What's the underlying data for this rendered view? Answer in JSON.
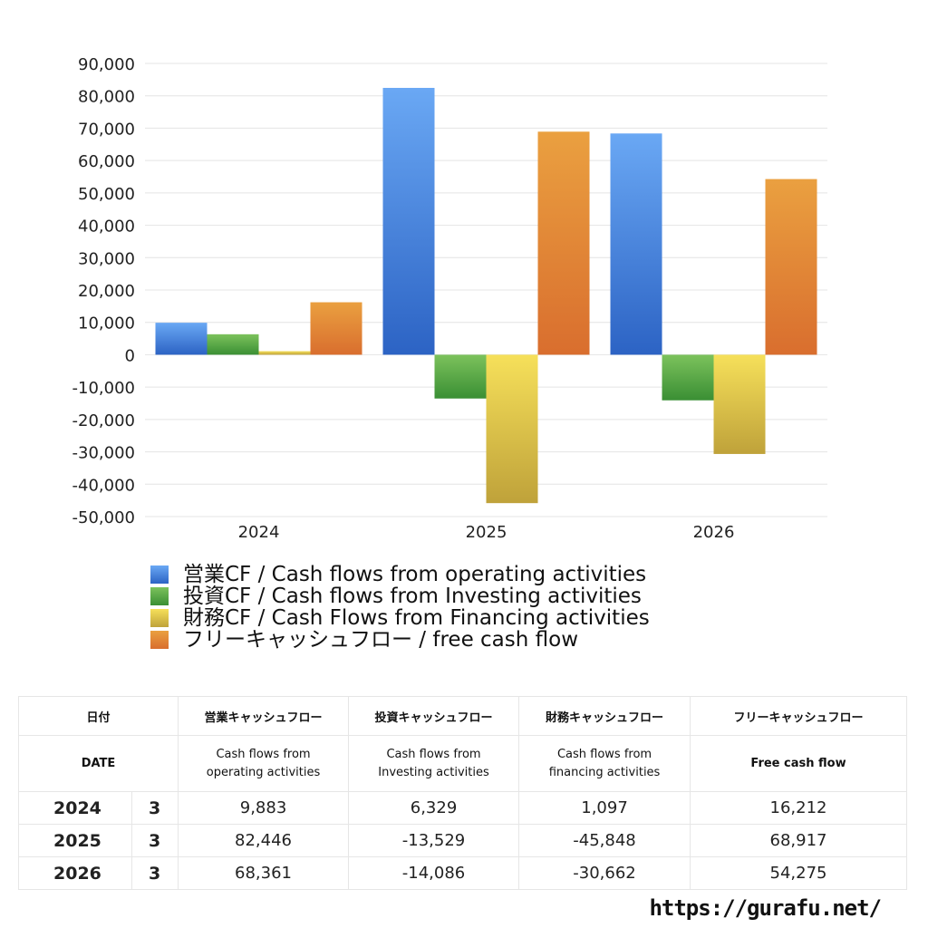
{
  "chart_data": {
    "type": "bar",
    "categories": [
      "2024",
      "2025",
      "2026"
    ],
    "ylim": [
      -50000,
      90000
    ],
    "yticks": [
      90000,
      80000,
      70000,
      60000,
      50000,
      40000,
      30000,
      20000,
      10000,
      0,
      -10000,
      -20000,
      -30000,
      -40000,
      -50000
    ],
    "ytick_labels": [
      "90,000",
      "80,000",
      "70,000",
      "60,000",
      "50,000",
      "40,000",
      "30,000",
      "20,000",
      "10,000",
      "0",
      "-10,000",
      "-20,000",
      "-30,000",
      "-40,000",
      "-50,000"
    ],
    "grid": true,
    "legend_position": "bottom",
    "series": [
      {
        "name": "営業CF / Cash flows from operating activities",
        "values": [
          9883,
          82446,
          68361
        ],
        "color_top": "#6aa8f4",
        "color_bottom": "#2c63c4"
      },
      {
        "name": "投資CF / Cash flows from Investing activities",
        "values": [
          6329,
          -13529,
          -14086
        ],
        "color_top": "#7cc25c",
        "color_bottom": "#3a8f34"
      },
      {
        "name": "財務CF / Cash Flows from Financing activities",
        "values": [
          1097,
          -45848,
          -30662
        ],
        "color_top": "#f6e05a",
        "color_bottom": "#bfa23a"
      },
      {
        "name": "フリーキャッシュフロー / free cash flow",
        "values": [
          16212,
          68917,
          54275
        ],
        "color_top": "#eaa040",
        "color_bottom": "#d96e2e"
      }
    ]
  },
  "table": {
    "headers_jp": [
      "日付",
      "営業キャッシュフロー",
      "投資キャッシュフロー",
      "財務キャッシュフロー",
      "フリーキャッシュフロー"
    ],
    "headers_en": {
      "date": "DATE",
      "operating_1": "Cash flows from",
      "operating_2": "operating activities",
      "investing_1": "Cash flows from",
      "investing_2": "Investing activities",
      "financing_1": "Cash flows from",
      "financing_2": "financing activities",
      "free": "Free cash flow"
    },
    "rows": [
      {
        "year": "2024",
        "month": "3",
        "operating": "9,883",
        "investing": "6,329",
        "financing": "1,097",
        "free": "16,212"
      },
      {
        "year": "2025",
        "month": "3",
        "operating": "82,446",
        "investing": "-13,529",
        "financing": "-45,848",
        "free": "68,917"
      },
      {
        "year": "2026",
        "month": "3",
        "operating": "68,361",
        "investing": "-14,086",
        "financing": "-30,662",
        "free": "54,275"
      }
    ]
  },
  "credit": "https://gurafu.net/"
}
